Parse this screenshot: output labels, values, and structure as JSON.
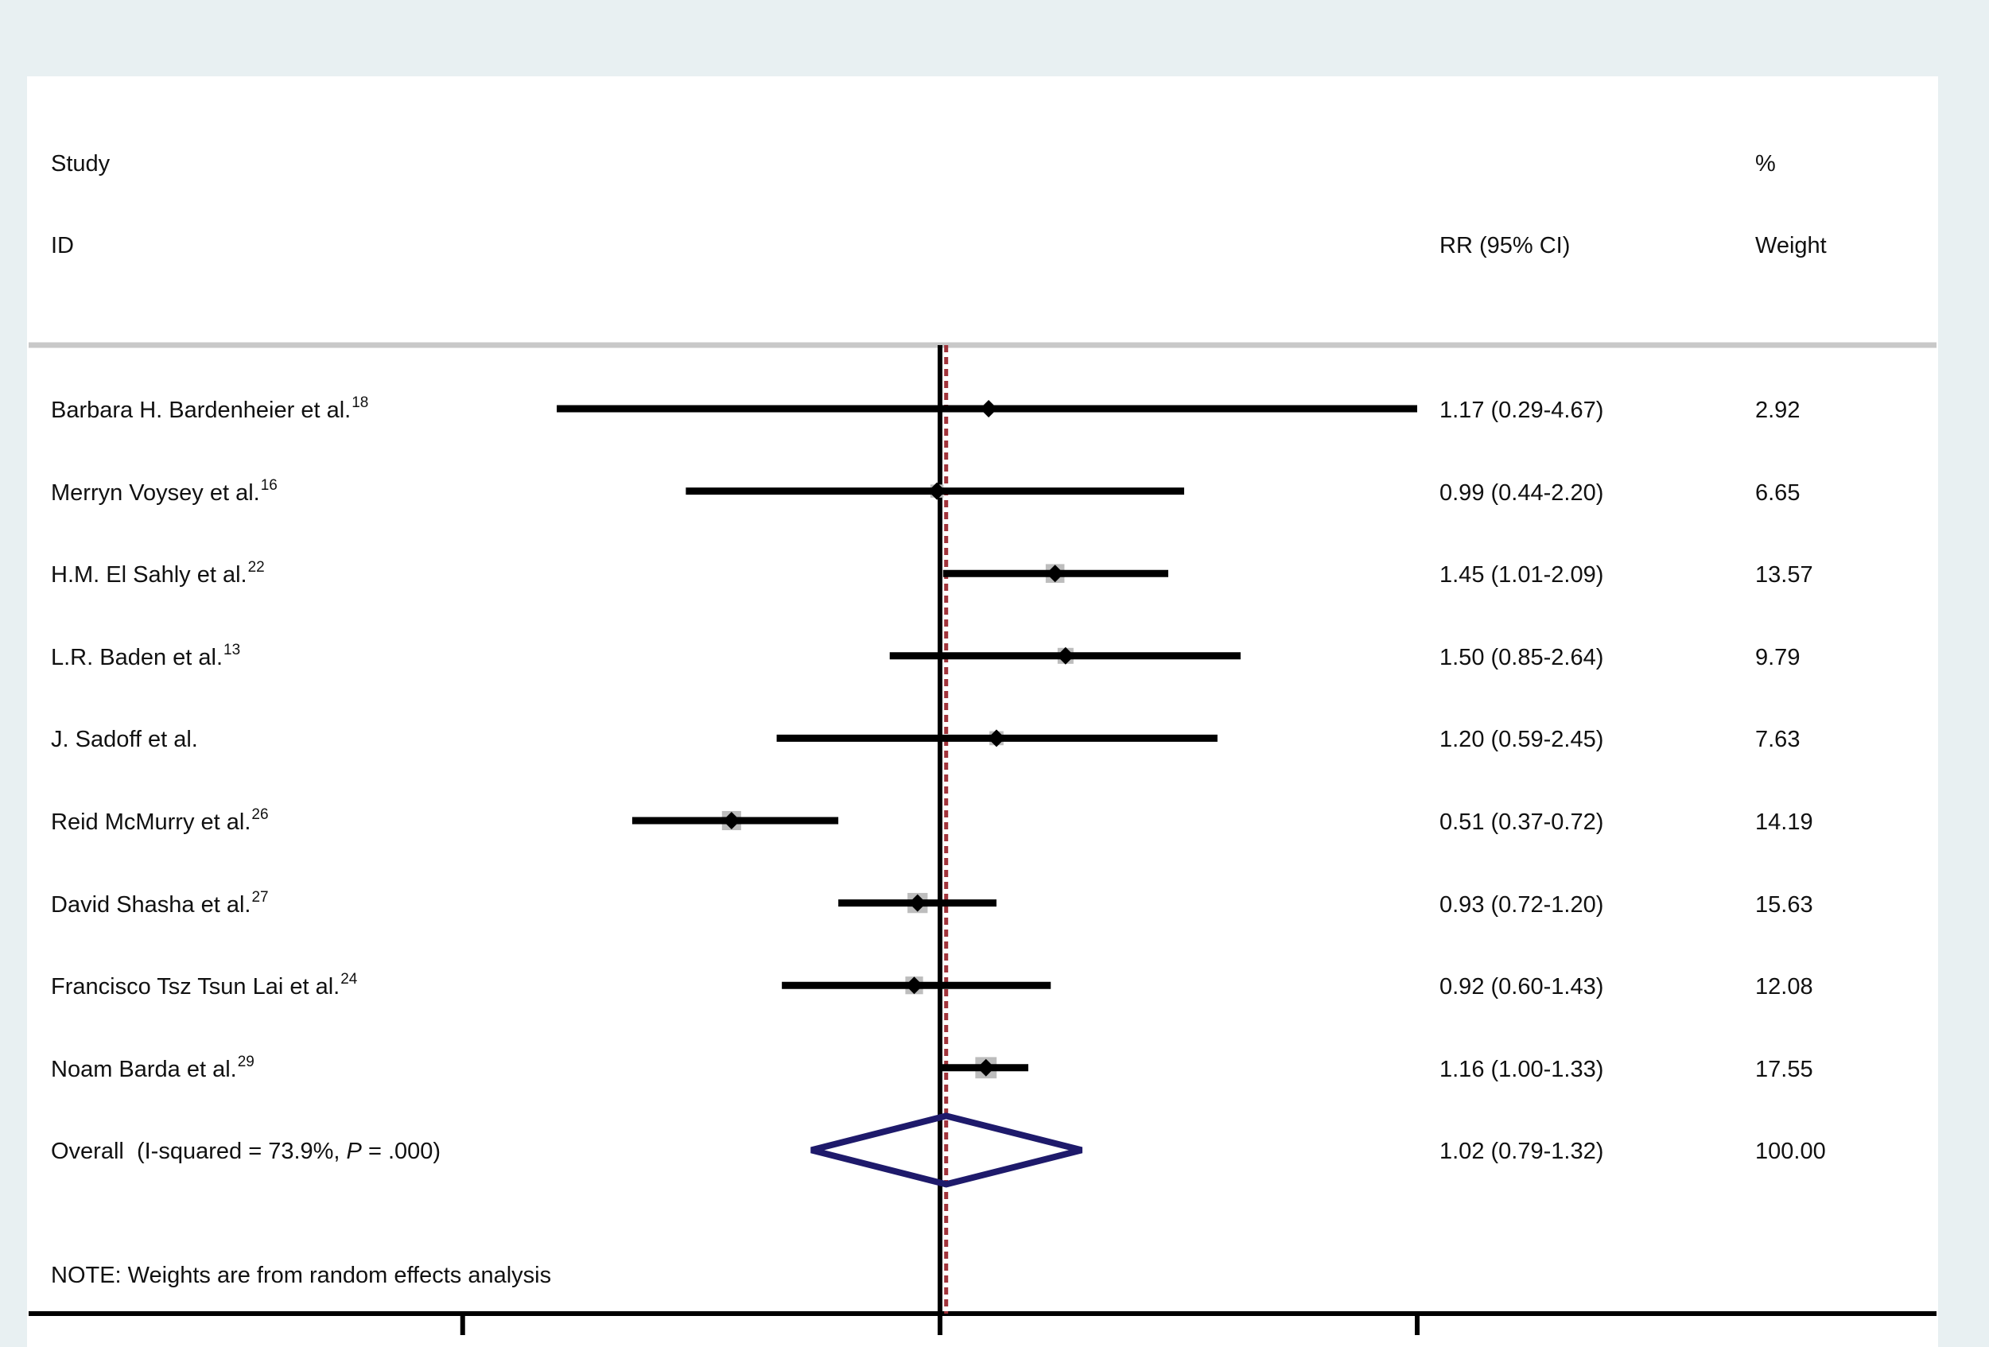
{
  "header": {
    "study_label": "Study",
    "id_label": "ID",
    "rr_label": "RR (95% CI)",
    "pct_label": "%",
    "weight_label": "Weight"
  },
  "chart_data": {
    "type": "forest",
    "title": "",
    "xlabel": "",
    "ylabel": "",
    "x_scale": "log",
    "null_value": 1,
    "pooled_line_value": 1.02,
    "studies": [
      {
        "label": "Barbara H. Bardenheier et al.",
        "ref": "18",
        "rr": 1.17,
        "lo": 0.29,
        "hi": 4.67,
        "rr_text": "1.17 (0.29-4.67)",
        "weight": 2.92,
        "weight_text": "2.92"
      },
      {
        "label": "Merryn Voysey et al.",
        "ref": "16",
        "rr": 0.99,
        "lo": 0.44,
        "hi": 2.2,
        "rr_text": "0.99 (0.44-2.20)",
        "weight": 6.65,
        "weight_text": "6.65"
      },
      {
        "label": "H.M. El Sahly et al.",
        "ref": "22",
        "rr": 1.45,
        "lo": 1.01,
        "hi": 2.09,
        "rr_text": "1.45 (1.01-2.09)",
        "weight": 13.57,
        "weight_text": "13.57"
      },
      {
        "label": "L.R. Baden et al.",
        "ref": "13",
        "rr": 1.5,
        "lo": 0.85,
        "hi": 2.64,
        "rr_text": "1.50 (0.85-2.64)",
        "weight": 9.79,
        "weight_text": "9.79"
      },
      {
        "label": "J. Sadoff et al.",
        "ref": "",
        "rr": 1.2,
        "lo": 0.59,
        "hi": 2.45,
        "rr_text": "1.20 (0.59-2.45)",
        "weight": 7.63,
        "weight_text": "7.63"
      },
      {
        "label": "Reid McMurry et al.",
        "ref": "26",
        "rr": 0.51,
        "lo": 0.37,
        "hi": 0.72,
        "rr_text": "0.51 (0.37-0.72)",
        "weight": 14.19,
        "weight_text": "14.19"
      },
      {
        "label": "David Shasha et al.",
        "ref": "27",
        "rr": 0.93,
        "lo": 0.72,
        "hi": 1.2,
        "rr_text": "0.93 (0.72-1.20)",
        "weight": 15.63,
        "weight_text": "15.63"
      },
      {
        "label": "Francisco Tsz Tsun Lai et al.",
        "ref": "24",
        "rr": 0.92,
        "lo": 0.6,
        "hi": 1.43,
        "rr_text": "0.92 (0.60-1.43)",
        "weight": 12.08,
        "weight_text": "12.08"
      },
      {
        "label": "Noam Barda et al.",
        "ref": "29",
        "rr": 1.16,
        "lo": 1.0,
        "hi": 1.33,
        "rr_text": "1.16 (1.00-1.33)",
        "weight": 17.55,
        "weight_text": "17.55"
      }
    ],
    "overall": {
      "label_prefix": "Overall  (I-squared = 73.9%, ",
      "p_symbol": "P",
      "label_suffix": " = .000)",
      "rr": 1.02,
      "lo": 0.79,
      "hi": 1.32,
      "rr_text": "1.02 (0.79-1.32)",
      "weight_text": "100.00"
    },
    "x_ticks": [
      0.214,
      1,
      4.67
    ],
    "colors": {
      "ci_line": "#000000",
      "weight_box": "#bdbdbd",
      "point": "#000000",
      "null_line": "#000000",
      "pooled_line": "#a0333a",
      "diamond": "#1e1a6b",
      "separator": "#c8c8c8"
    }
  },
  "note": "NOTE: Weights are from random effects analysis"
}
